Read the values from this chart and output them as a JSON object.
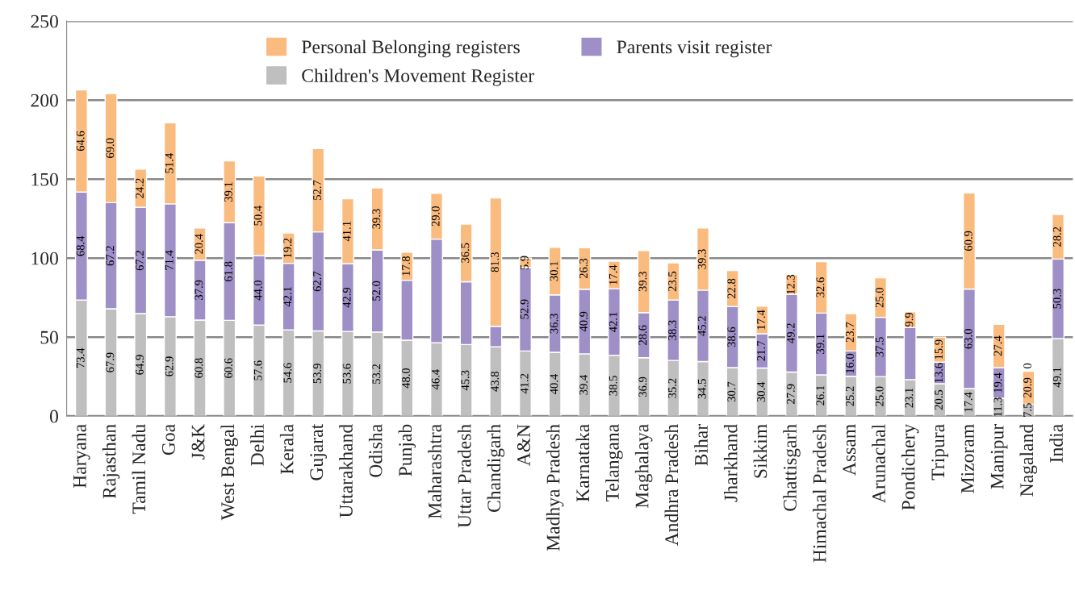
{
  "chart_data": {
    "type": "bar",
    "stacked": true,
    "legend": "top",
    "grid": "y",
    "categories": [
      "Haryana",
      "Rajasthan",
      "Tamil Nadu",
      "Goa",
      "J&K",
      "West Bengal",
      "Delhi",
      "Kerala",
      "Gujarat",
      "Uttarakhand",
      "Odisha",
      "Punjab",
      "Maharashtra",
      "Uttar Pradesh",
      "Chandigarh",
      "A&N",
      "Madhya Pradesh",
      "Karnataka",
      "Telangana",
      "Maghalaya",
      "Andhra Pradesh",
      "Bihar",
      "Jharkhand",
      "Sikkim",
      "Chattisgarh",
      "Himachal Pradesh",
      "Assam",
      "Arunachal",
      "Pondichery",
      "Tripura",
      "Mizoram",
      "Manipur",
      "Nagaland",
      "India"
    ],
    "ylim": [
      0,
      250
    ],
    "yticks": [
      0,
      50,
      100,
      150,
      200,
      250
    ],
    "series": [
      {
        "name": "Children's Movement Register",
        "color": "#bfbfbf",
        "values": [
          73.4,
          67.9,
          64.9,
          62.9,
          60.8,
          60.6,
          57.6,
          54.6,
          53.9,
          53.6,
          53.2,
          48.0,
          46.4,
          45.3,
          43.8,
          41.2,
          40.4,
          39.4,
          38.5,
          36.9,
          35.2,
          34.5,
          30.7,
          30.4,
          27.9,
          26.1,
          25.2,
          25.0,
          23.1,
          20.5,
          17.4,
          11.3,
          7.5,
          49.1
        ],
        "value_labels": [
          "73.4",
          "67.9",
          "64.9",
          "62.9",
          "60.8",
          "60.6",
          "57.6",
          "54.6",
          "53.9",
          "53.6",
          "53.2",
          "48.0",
          "46.4",
          "45.3",
          "43.8",
          "41.2",
          "40.4",
          "39.4",
          "38.5",
          "36.9",
          "35.2",
          "34.5",
          "30.7",
          "30.4",
          "27.9",
          "26.1",
          "25.2",
          "25.0",
          "23.1",
          "20.5",
          "17.4",
          "11.3",
          "7.5",
          "49.1"
        ]
      },
      {
        "name": "Parents visit register",
        "color": "#9e8fc7",
        "values": [
          68.4,
          67.2,
          67.2,
          71.4,
          37.9,
          61.8,
          44.0,
          42.1,
          62.7,
          42.9,
          52.0,
          38.0,
          65.6,
          39.7,
          13.0,
          52.9,
          36.3,
          40.9,
          42.1,
          28.6,
          38.3,
          45.2,
          38.6,
          21.7,
          49.2,
          39.1,
          16.0,
          37.5,
          33.0,
          13.6,
          63.0,
          19.4,
          0,
          50.3
        ],
        "value_labels": [
          "68.4",
          "67.2",
          "67.2",
          "71.4",
          "37.9",
          "61.8",
          "44.0",
          "42.1",
          "62.7",
          "42.9",
          "52.0",
          null,
          null,
          null,
          null,
          "52.9",
          "36.3",
          "40.9",
          "42.1",
          "28.6",
          "38.3",
          "45.2",
          "38.6",
          "21.7",
          "49.2",
          "39.1",
          "16.0",
          "37.5",
          null,
          "13.6",
          "63.0",
          "19.4",
          "0",
          "50.3"
        ]
      },
      {
        "name": "Personal Belonging registers",
        "color": "#fabb7f",
        "values": [
          64.6,
          69.0,
          24.2,
          51.4,
          20.4,
          39.1,
          50.4,
          19.2,
          52.7,
          41.1,
          39.3,
          17.8,
          29.0,
          36.5,
          81.3,
          5.9,
          30.1,
          26.3,
          17.4,
          39.3,
          23.5,
          39.3,
          22.8,
          17.4,
          12.3,
          32.6,
          23.7,
          25.0,
          9.9,
          15.9,
          60.9,
          27.4,
          20.9,
          28.2
        ],
        "value_labels": [
          "64.6",
          "69.0",
          "24.2",
          "51.4",
          "20.4",
          "39.1",
          "50.4",
          "19.2",
          "52.7",
          "41.1",
          "39.3",
          "17.8",
          "29.0",
          "36.5",
          "81.3",
          "5.9",
          "30.1",
          "26.3",
          "17.4",
          "39.3",
          "23.5",
          "39.3",
          "22.8",
          "17.4",
          "12.3",
          "32.6",
          "23.7",
          "25.0",
          "9.9",
          "15.9",
          "60.9",
          "27.4",
          "20.9",
          "28.2"
        ]
      }
    ]
  }
}
